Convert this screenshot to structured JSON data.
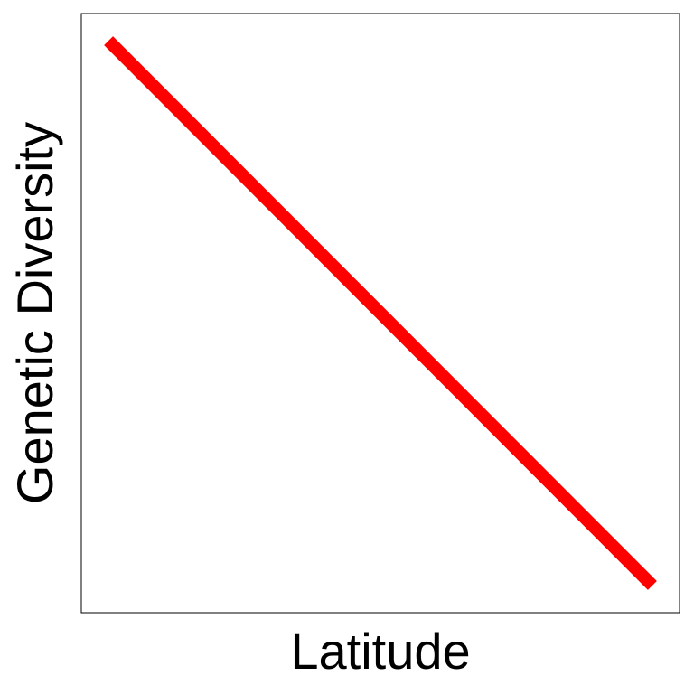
{
  "chart_data": {
    "type": "line",
    "title": "",
    "xlabel": "Latitude",
    "ylabel": "Genetic Diversity",
    "x": [
      0,
      1
    ],
    "series": [
      {
        "values": [
          1,
          0
        ]
      }
    ],
    "xlim": [
      -0.05,
      1.05
    ],
    "ylim": [
      -0.05,
      1.05
    ],
    "grid": false,
    "x_ticks": false,
    "y_ticks": false,
    "line_color": "#ff0000"
  }
}
